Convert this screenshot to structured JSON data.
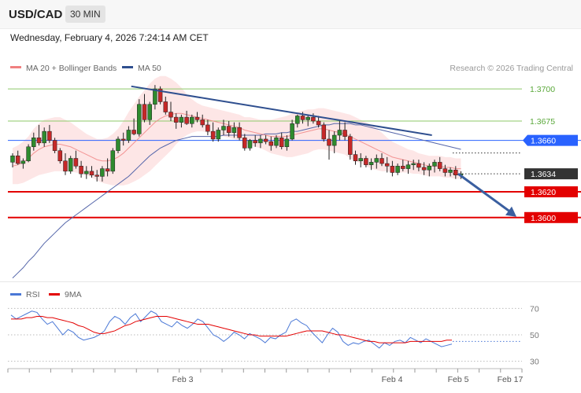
{
  "header": {
    "symbol": "USD/CAD",
    "timeframe": "30 MIN",
    "datetime": "Wednesday, February 4, 2026 7:24:14 AM CET"
  },
  "legend": {
    "ma20_label": "MA 20 + Bollinger Bands",
    "ma50_label": "MA 50",
    "copyright": "Research © 2026 Trading Central",
    "rsi_label": "RSI",
    "rsi_ma_label": "9MA"
  },
  "colors": {
    "ma20": "#f08080",
    "band_fill": "#fde3e3",
    "ma50": "#5566aa",
    "resistance": "#8ec96a",
    "pivot": "#2962ff",
    "support": "#e30000",
    "current": "#333333",
    "candle_up": "#2e8b2e",
    "candle_down": "#c62828",
    "trendline": "#2f4f8f",
    "rsi": "#4a78d6",
    "rsi_ma": "#e30000"
  },
  "chart_data": [
    {
      "type": "candlestick",
      "title": "USD/CAD",
      "timeframe": "30 MIN",
      "x_ticks": [
        "Feb 3",
        "Feb 4",
        "Feb 5",
        "Feb 17"
      ],
      "y_range": [
        1.3551,
        1.3708
      ],
      "levels": [
        {
          "value": 1.37,
          "label": "1.3700",
          "role": "resistance"
        },
        {
          "value": 1.3675,
          "label": "1.3675",
          "role": "resistance"
        },
        {
          "value": 1.366,
          "label": "1.3660",
          "role": "pivot"
        },
        {
          "value": 1.3634,
          "label": "1.3634",
          "role": "current"
        },
        {
          "value": 1.362,
          "label": "1.3620",
          "role": "support"
        },
        {
          "value": 1.36,
          "label": "1.3600",
          "role": "support"
        }
      ],
      "trendline": {
        "from": 1.3702,
        "to": 1.3664
      },
      "forecast_arrow": {
        "from": 1.3634,
        "to": 1.36
      },
      "candles": [
        [
          1.3643,
          1.365,
          1.3639,
          1.3648
        ],
        [
          1.3648,
          1.3652,
          1.3641,
          1.3642
        ],
        [
          1.3642,
          1.3646,
          1.3638,
          1.3644
        ],
        [
          1.3644,
          1.3657,
          1.3643,
          1.3655
        ],
        [
          1.3655,
          1.3666,
          1.3652,
          1.3662
        ],
        [
          1.3662,
          1.3672,
          1.3656,
          1.3658
        ],
        [
          1.3658,
          1.367,
          1.3655,
          1.3667
        ],
        [
          1.3667,
          1.3672,
          1.3658,
          1.366
        ],
        [
          1.366,
          1.3662,
          1.365,
          1.3652
        ],
        [
          1.3652,
          1.3654,
          1.3642,
          1.3644
        ],
        [
          1.3644,
          1.365,
          1.3633,
          1.3636
        ],
        [
          1.3636,
          1.3648,
          1.3634,
          1.3646
        ],
        [
          1.3646,
          1.3652,
          1.3638,
          1.364
        ],
        [
          1.364,
          1.3644,
          1.3631,
          1.3634
        ],
        [
          1.3634,
          1.364,
          1.363,
          1.3636
        ],
        [
          1.3636,
          1.364,
          1.3631,
          1.3633
        ],
        [
          1.3633,
          1.3637,
          1.3628,
          1.3632
        ],
        [
          1.3632,
          1.364,
          1.3628,
          1.3638
        ],
        [
          1.3638,
          1.3646,
          1.3632,
          1.3636
        ],
        [
          1.3636,
          1.3654,
          1.3634,
          1.3652
        ],
        [
          1.3652,
          1.3663,
          1.365,
          1.3661
        ],
        [
          1.3661,
          1.3666,
          1.3656,
          1.366
        ],
        [
          1.366,
          1.3671,
          1.3658,
          1.3668
        ],
        [
          1.3668,
          1.3677,
          1.3664,
          1.3665
        ],
        [
          1.3665,
          1.3692,
          1.3663,
          1.3688
        ],
        [
          1.3688,
          1.3696,
          1.3674,
          1.3676
        ],
        [
          1.3676,
          1.369,
          1.3672,
          1.3688
        ],
        [
          1.3688,
          1.3703,
          1.3684,
          1.37
        ],
        [
          1.37,
          1.3702,
          1.3688,
          1.369
        ],
        [
          1.369,
          1.3694,
          1.368,
          1.3682
        ],
        [
          1.3682,
          1.369,
          1.3675,
          1.3678
        ],
        [
          1.3678,
          1.3681,
          1.3669,
          1.3674
        ],
        [
          1.3674,
          1.368,
          1.367,
          1.3678
        ],
        [
          1.3678,
          1.3683,
          1.3672,
          1.3673
        ],
        [
          1.3673,
          1.368,
          1.367,
          1.3678
        ],
        [
          1.3678,
          1.3682,
          1.3674,
          1.3676
        ],
        [
          1.3676,
          1.368,
          1.367,
          1.3672
        ],
        [
          1.3672,
          1.3676,
          1.3664,
          1.3667
        ],
        [
          1.3667,
          1.3674,
          1.3659,
          1.3661
        ],
        [
          1.3661,
          1.367,
          1.3659,
          1.3668
        ],
        [
          1.3668,
          1.3676,
          1.3664,
          1.3671
        ],
        [
          1.3671,
          1.3675,
          1.3663,
          1.3666
        ],
        [
          1.3666,
          1.3674,
          1.3662,
          1.367
        ],
        [
          1.367,
          1.3674,
          1.366,
          1.3662
        ],
        [
          1.3662,
          1.3665,
          1.3652,
          1.3654
        ],
        [
          1.3654,
          1.3661,
          1.3652,
          1.366
        ],
        [
          1.366,
          1.3664,
          1.3655,
          1.3658
        ],
        [
          1.3658,
          1.3664,
          1.3654,
          1.3661
        ],
        [
          1.3661,
          1.3664,
          1.3657,
          1.3659
        ],
        [
          1.3659,
          1.3663,
          1.3652,
          1.3656
        ],
        [
          1.3656,
          1.3664,
          1.3654,
          1.3662
        ],
        [
          1.3662,
          1.3666,
          1.3653,
          1.3655
        ],
        [
          1.3655,
          1.3664,
          1.3652,
          1.3661
        ],
        [
          1.3661,
          1.3676,
          1.366,
          1.3673
        ],
        [
          1.3673,
          1.368,
          1.367,
          1.3679
        ],
        [
          1.3679,
          1.3682,
          1.3673,
          1.3676
        ],
        [
          1.3676,
          1.368,
          1.3671,
          1.3678
        ],
        [
          1.3678,
          1.3681,
          1.3673,
          1.3675
        ],
        [
          1.3675,
          1.3679,
          1.367,
          1.3672
        ],
        [
          1.3672,
          1.3674,
          1.3659,
          1.3661
        ],
        [
          1.3661,
          1.3668,
          1.3645,
          1.3656
        ],
        [
          1.3656,
          1.3667,
          1.365,
          1.3664
        ],
        [
          1.3664,
          1.3676,
          1.366,
          1.3668
        ],
        [
          1.3668,
          1.3674,
          1.366,
          1.3663
        ],
        [
          1.3663,
          1.3665,
          1.3645,
          1.3649
        ],
        [
          1.3649,
          1.3652,
          1.3641,
          1.3644
        ],
        [
          1.3644,
          1.365,
          1.3639,
          1.3646
        ],
        [
          1.3646,
          1.3648,
          1.3639,
          1.3641
        ],
        [
          1.3641,
          1.3646,
          1.3637,
          1.3643
        ],
        [
          1.3643,
          1.3649,
          1.3638,
          1.3646
        ],
        [
          1.3646,
          1.365,
          1.364,
          1.3642
        ],
        [
          1.3642,
          1.3647,
          1.3635,
          1.364
        ],
        [
          1.364,
          1.3644,
          1.3632,
          1.3635
        ],
        [
          1.3635,
          1.3642,
          1.3633,
          1.364
        ],
        [
          1.364,
          1.3645,
          1.3636,
          1.3638
        ],
        [
          1.3638,
          1.3644,
          1.3634,
          1.3641
        ],
        [
          1.3641,
          1.3645,
          1.3637,
          1.3642
        ],
        [
          1.3642,
          1.3645,
          1.3636,
          1.3639
        ],
        [
          1.3639,
          1.3643,
          1.3633,
          1.3637
        ],
        [
          1.3637,
          1.3642,
          1.3632,
          1.364
        ],
        [
          1.364,
          1.3645,
          1.3635,
          1.3643
        ],
        [
          1.3643,
          1.3647,
          1.3636,
          1.3638
        ],
        [
          1.3638,
          1.3641,
          1.3632,
          1.3635
        ],
        [
          1.3635,
          1.3639,
          1.3632,
          1.3637
        ],
        [
          1.3637,
          1.364,
          1.363,
          1.3633
        ],
        [
          1.3633,
          1.3636,
          1.363,
          1.3634
        ]
      ],
      "ma20": [
        1.364,
        1.3641,
        1.3643,
        1.3646,
        1.365,
        1.3653,
        1.3655,
        1.3656,
        1.3657,
        1.3657,
        1.3656,
        1.3655,
        1.3653,
        1.3651,
        1.3649,
        1.3647,
        1.3645,
        1.3644,
        1.3644,
        1.3645,
        1.3647,
        1.365,
        1.3654,
        1.3658,
        1.3662,
        1.3666,
        1.367,
        1.3674,
        1.3677,
        1.3679,
        1.368,
        1.3681,
        1.3681,
        1.368,
        1.3679,
        1.3678,
        1.3677,
        1.3676,
        1.3675,
        1.3674,
        1.3673,
        1.3672,
        1.3671,
        1.367,
        1.3668,
        1.3667,
        1.3666,
        1.3665,
        1.3664,
        1.3663,
        1.3663,
        1.3663,
        1.3663,
        1.3664,
        1.3665,
        1.3666,
        1.3667,
        1.3668,
        1.3669,
        1.3669,
        1.3668,
        1.3667,
        1.3666,
        1.3665,
        1.3663,
        1.3661,
        1.3659,
        1.3657,
        1.3655,
        1.3653,
        1.3651,
        1.3649,
        1.3647,
        1.3646,
        1.3645,
        1.3644,
        1.3643,
        1.3642,
        1.3641,
        1.364,
        1.364,
        1.364,
        1.3639,
        1.3639,
        1.3638,
        1.3638
      ],
      "bb_width": [
        0.0014,
        0.0015,
        0.0016,
        0.0017,
        0.0019,
        0.002,
        0.0021,
        0.0021,
        0.0021,
        0.0021,
        0.002,
        0.0019,
        0.0018,
        0.0017,
        0.0016,
        0.0016,
        0.0016,
        0.0017,
        0.0018,
        0.002,
        0.0022,
        0.0025,
        0.0028,
        0.003,
        0.0032,
        0.0033,
        0.0034,
        0.0034,
        0.0033,
        0.0031,
        0.0028,
        0.0024,
        0.002,
        0.0016,
        0.0013,
        0.0011,
        0.001,
        0.001,
        0.001,
        0.001,
        0.001,
        0.001,
        0.001,
        0.001,
        0.001,
        0.0011,
        0.0011,
        0.0011,
        0.0012,
        0.0013,
        0.0014,
        0.0015,
        0.0016,
        0.0017,
        0.0017,
        0.0017,
        0.0017,
        0.0016,
        0.0016,
        0.0016,
        0.0016,
        0.0016,
        0.0016,
        0.0016,
        0.0017,
        0.0017,
        0.0017,
        0.0017,
        0.0017,
        0.0016,
        0.0015,
        0.0013,
        0.0012,
        0.0011,
        0.001,
        0.0009,
        0.0009,
        0.0008,
        0.0008,
        0.0008,
        0.0008,
        0.0008,
        0.0008,
        0.0008,
        0.0008,
        0.0008
      ],
      "ma50": [
        1.3553,
        1.3557,
        1.3561,
        1.3566,
        1.357,
        1.3575,
        1.358,
        1.3584,
        1.3588,
        1.3592,
        1.3596,
        1.3599,
        1.3602,
        1.3605,
        1.3608,
        1.3611,
        1.3614,
        1.3617,
        1.362,
        1.3623,
        1.3626,
        1.3629,
        1.3632,
        1.3636,
        1.364,
        1.3644,
        1.3648,
        1.3651,
        1.3654,
        1.3656,
        1.3658,
        1.366,
        1.3661,
        1.3662,
        1.3663,
        1.3663,
        1.3663,
        1.3663,
        1.3663,
        1.3663,
        1.3664,
        1.3664,
        1.3664,
        1.3664,
        1.3664,
        1.3664,
        1.3664,
        1.3664,
        1.3665,
        1.3665,
        1.3665,
        1.3666,
        1.3666,
        1.3667,
        1.3667,
        1.3668,
        1.3669,
        1.367,
        1.3671,
        1.3672,
        1.3672,
        1.3673,
        1.3673,
        1.3673,
        1.3673,
        1.3672,
        1.3672,
        1.3671,
        1.367,
        1.3669,
        1.3668,
        1.3667,
        1.3666,
        1.3665,
        1.3664,
        1.3663,
        1.3662,
        1.3661,
        1.366,
        1.3659,
        1.3658,
        1.3657,
        1.3656,
        1.3655,
        1.3654,
        1.3653
      ]
    },
    {
      "type": "line",
      "title": "RSI",
      "y_ticks": [
        30,
        50,
        70
      ],
      "y_range": [
        25,
        75
      ],
      "series": [
        {
          "name": "RSI",
          "values": [
            65,
            62,
            64,
            66,
            68,
            67,
            62,
            58,
            60,
            55,
            50,
            54,
            52,
            48,
            46,
            47,
            48,
            50,
            53,
            60,
            64,
            62,
            58,
            63,
            66,
            60,
            64,
            68,
            66,
            60,
            58,
            56,
            60,
            57,
            55,
            58,
            62,
            60,
            55,
            50,
            48,
            45,
            48,
            52,
            50,
            47,
            51,
            49,
            47,
            44,
            48,
            47,
            50,
            52,
            60,
            62,
            59,
            57,
            52,
            48,
            44,
            50,
            55,
            52,
            45,
            42,
            44,
            43,
            45,
            46,
            43,
            40,
            44,
            42,
            45,
            46,
            44,
            48,
            46,
            44,
            47,
            45,
            43,
            41,
            42,
            43
          ]
        },
        {
          "name": "9MA",
          "values": [
            62,
            62,
            62,
            63,
            63,
            64,
            64,
            63,
            63,
            62,
            61,
            60,
            59,
            57,
            56,
            54,
            52,
            51,
            51,
            52,
            53,
            55,
            57,
            58,
            60,
            61,
            62,
            63,
            64,
            64,
            64,
            63,
            62,
            61,
            60,
            59,
            58,
            58,
            58,
            57,
            56,
            55,
            54,
            53,
            52,
            51,
            50,
            50,
            49,
            49,
            49,
            49,
            49,
            49,
            50,
            51,
            52,
            53,
            53,
            53,
            53,
            52,
            51,
            50,
            50,
            49,
            48,
            47,
            46,
            45,
            45,
            44,
            44,
            44,
            44,
            44,
            44,
            45,
            45,
            45,
            45,
            45,
            45,
            45,
            46,
            46
          ]
        }
      ]
    }
  ]
}
